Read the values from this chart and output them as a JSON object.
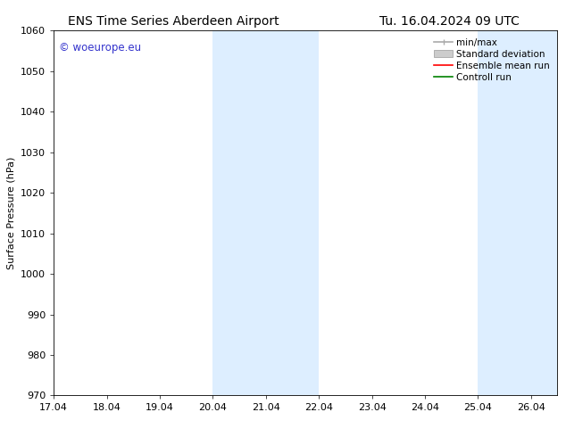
{
  "title_left": "ENS Time Series Aberdeen Airport",
  "title_right": "Tu. 16.04.2024 09 UTC",
  "ylabel": "Surface Pressure (hPa)",
  "ylim": [
    970,
    1060
  ],
  "yticks": [
    970,
    980,
    990,
    1000,
    1010,
    1020,
    1030,
    1040,
    1050,
    1060
  ],
  "xlim_start": 0,
  "xlim_end": 9.5,
  "xtick_labels": [
    "17.04",
    "18.04",
    "19.04",
    "20.04",
    "21.04",
    "22.04",
    "23.04",
    "24.04",
    "25.04",
    "26.04"
  ],
  "xtick_positions": [
    0,
    1,
    2,
    3,
    4,
    5,
    6,
    7,
    8,
    9
  ],
  "shaded_bands": [
    {
      "x_start": 3.0,
      "x_end": 5.0,
      "color": "#ddeeff"
    },
    {
      "x_start": 8.0,
      "x_end": 9.5,
      "color": "#ddeeff"
    }
  ],
  "watermark_text": "© woeurope.eu",
  "watermark_color": "#3333cc",
  "legend_items": [
    {
      "label": "min/max",
      "color": "#aaaaaa",
      "lw": 1.2,
      "linestyle": "-",
      "type": "minmax"
    },
    {
      "label": "Standard deviation",
      "color": "#cccccc",
      "lw": 8,
      "linestyle": "-",
      "type": "band"
    },
    {
      "label": "Ensemble mean run",
      "color": "#ff0000",
      "lw": 1.2,
      "linestyle": "-",
      "type": "line"
    },
    {
      "label": "Controll run",
      "color": "#008000",
      "lw": 1.2,
      "linestyle": "-",
      "type": "line"
    }
  ],
  "background_color": "#ffffff",
  "grid_color": "#dddddd",
  "title_fontsize": 10,
  "axis_label_fontsize": 8,
  "tick_fontsize": 8,
  "legend_fontsize": 7.5
}
